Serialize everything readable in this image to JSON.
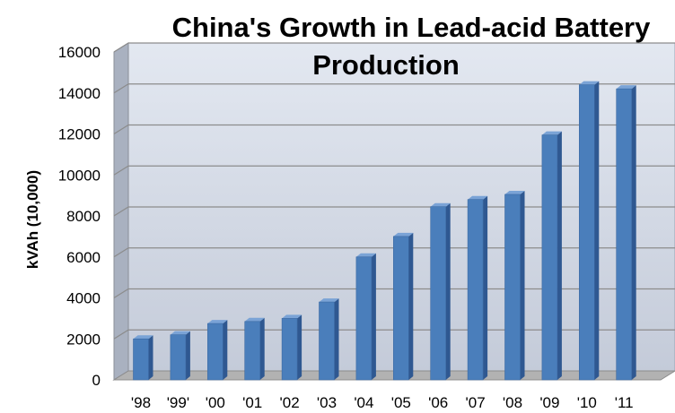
{
  "chart_data": {
    "type": "bar",
    "title_line1": "China's Growth in Lead-acid Battery",
    "title_line2": "Production",
    "xlabel": "",
    "ylabel": "kVAh (10,000)",
    "ylim": [
      0,
      16000
    ],
    "yticks": [
      "0",
      "2000",
      "4000",
      "6000",
      "8000",
      "10000",
      "12000",
      "14000",
      "16000"
    ],
    "categories": [
      "'98",
      "'99'",
      "'00",
      "'01",
      "'02",
      "'03",
      "'04",
      "'05",
      "'06",
      "'07",
      "'08",
      "'09",
      "'10",
      "'11"
    ],
    "values": [
      2000,
      2200,
      2750,
      2850,
      3000,
      3800,
      6000,
      7000,
      8450,
      8800,
      9050,
      11950,
      14400,
      14200
    ],
    "grid": true,
    "legend": "none",
    "colors": {
      "bar_front": "#4a7ebb",
      "bar_side": "#2f5891",
      "bar_top": "#7aa3d6",
      "wall": "#cfd6e4",
      "floor": "#b2b2b2",
      "grid": "#8c8c8c"
    }
  }
}
